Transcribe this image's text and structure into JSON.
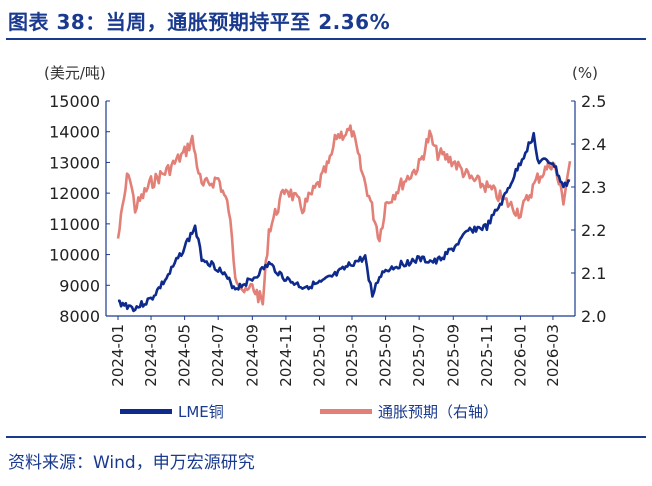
{
  "title": "图表 38：当周，通胀预期持平至 2.36%",
  "source": "资料来源：Wind，申万宏源研究",
  "colors": {
    "brand": "#1a3a8f",
    "lme": "#0d2a8c",
    "inflation": "#e28078",
    "axis": "#1a3a8f"
  },
  "chart_data": {
    "type": "line",
    "left_axis": {
      "unit": "(美元/吨)",
      "min": 8000,
      "max": 15000,
      "ticks": [
        8000,
        9000,
        10000,
        11000,
        12000,
        13000,
        14000,
        15000
      ]
    },
    "right_axis": {
      "unit": "(%)",
      "min": 2.0,
      "max": 2.5,
      "ticks": [
        "2.0",
        "2.1",
        "2.2",
        "2.3",
        "2.4",
        "2.5"
      ]
    },
    "x_ticks": [
      "2024-01",
      "2024-03",
      "2024-05",
      "2024-07",
      "2024-09",
      "2024-11",
      "2025-01",
      "2025-03",
      "2025-05",
      "2025-07",
      "2025-09",
      "2025-11",
      "2026-01",
      "2026-03"
    ],
    "series": [
      {
        "name": "LME铜",
        "axis": "left",
        "points": [
          [
            "2024-01",
            8450
          ],
          [
            "2024-02",
            8250
          ],
          [
            "2024-03",
            8550
          ],
          [
            "2024-04",
            9300
          ],
          [
            "2024-05",
            10250
          ],
          [
            "2024-05-20",
            10900
          ],
          [
            "2024-06",
            9900
          ],
          [
            "2024-07",
            9550
          ],
          [
            "2024-08",
            8900
          ],
          [
            "2024-09",
            9200
          ],
          [
            "2024-10",
            9700
          ],
          [
            "2024-11",
            9200
          ],
          [
            "2024-12",
            8950
          ],
          [
            "2025-01",
            9050
          ],
          [
            "2025-02",
            9350
          ],
          [
            "2025-03",
            9700
          ],
          [
            "2025-03-25",
            9900
          ],
          [
            "2025-04-07",
            8650
          ],
          [
            "2025-04-20",
            9300
          ],
          [
            "2025-05",
            9500
          ],
          [
            "2025-06",
            9700
          ],
          [
            "2025-07",
            9850
          ],
          [
            "2025-08",
            9750
          ],
          [
            "2025-09",
            10200
          ],
          [
            "2025-10",
            10800
          ],
          [
            "2025-11",
            10900
          ],
          [
            "2025-12",
            11800
          ],
          [
            "2026-01",
            13000
          ],
          [
            "2026-01-25",
            13900
          ],
          [
            "2026-02",
            13050
          ],
          [
            "2026-03",
            13000
          ],
          [
            "2026-03-20",
            12200
          ],
          [
            "2026-04",
            12400
          ]
        ]
      },
      {
        "name": "通胀预期（右轴）",
        "axis": "right",
        "points": [
          [
            "2024-01",
            2.18
          ],
          [
            "2024-01-20",
            2.34
          ],
          [
            "2024-02",
            2.25
          ],
          [
            "2024-03",
            2.31
          ],
          [
            "2024-04",
            2.34
          ],
          [
            "2024-05",
            2.38
          ],
          [
            "2024-05-15",
            2.41
          ],
          [
            "2024-06",
            2.3
          ],
          [
            "2024-07",
            2.32
          ],
          [
            "2024-07-20",
            2.25
          ],
          [
            "2024-08",
            2.1
          ],
          [
            "2024-08-20",
            2.05
          ],
          [
            "2024-09",
            2.07
          ],
          [
            "2024-09-20",
            2.03
          ],
          [
            "2024-10",
            2.2
          ],
          [
            "2024-11",
            2.3
          ],
          [
            "2024-12",
            2.25
          ],
          [
            "2025-01",
            2.31
          ],
          [
            "2025-01-20",
            2.36
          ],
          [
            "2025-02",
            2.42
          ],
          [
            "2025-03",
            2.43
          ],
          [
            "2025-03-20",
            2.33
          ],
          [
            "2025-04",
            2.28
          ],
          [
            "2025-04-20",
            2.18
          ],
          [
            "2025-05",
            2.26
          ],
          [
            "2025-06",
            2.31
          ],
          [
            "2025-07",
            2.35
          ],
          [
            "2025-07-20",
            2.42
          ],
          [
            "2025-08",
            2.38
          ],
          [
            "2025-09",
            2.36
          ],
          [
            "2025-10",
            2.32
          ],
          [
            "2025-11",
            2.3
          ],
          [
            "2025-12",
            2.27
          ],
          [
            "2026-01",
            2.24
          ],
          [
            "2026-02",
            2.32
          ],
          [
            "2026-03",
            2.36
          ],
          [
            "2026-03-20",
            2.27
          ],
          [
            "2026-04",
            2.36
          ]
        ]
      }
    ],
    "legend": [
      {
        "label": "LME铜"
      },
      {
        "label": "通胀预期（右轴）"
      }
    ]
  }
}
